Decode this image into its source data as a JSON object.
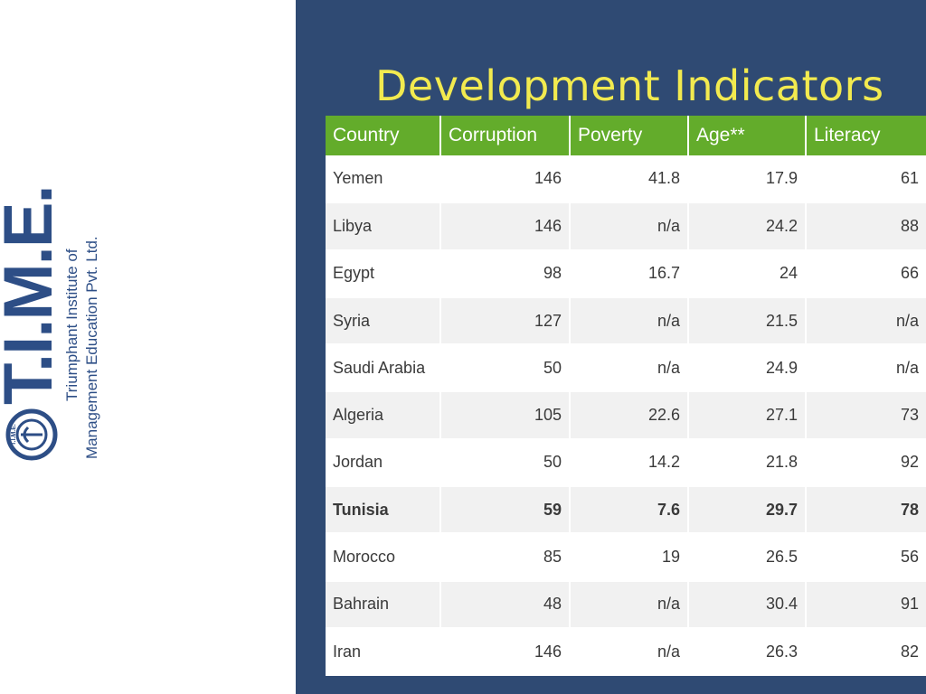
{
  "slide": {
    "title": "Development Indicators"
  },
  "logo": {
    "brand": "T.I.M.E.",
    "line1": "Triumphant Institute of",
    "line2": "Management Education Pvt. Ltd.",
    "emblem_text": "T.I.M.E.",
    "colors": {
      "brand": "#2d4e86"
    }
  },
  "colors": {
    "panel": "#2f4a73",
    "title": "#f2ea4f",
    "header": "#63ac2b"
  },
  "table": {
    "headers": [
      "Country",
      "Corruption",
      "Poverty",
      "Age**",
      "Literacy"
    ],
    "rows": [
      [
        "Yemen",
        "146",
        "41.8",
        "17.9",
        "61"
      ],
      [
        "Libya",
        "146",
        "n/a",
        "24.2",
        "88"
      ],
      [
        "Egypt",
        "98",
        "16.7",
        "24",
        "66"
      ],
      [
        "Syria",
        "127",
        "n/a",
        "21.5",
        "n/a"
      ],
      [
        "Saudi Arabia",
        "50",
        "n/a",
        "24.9",
        "n/a"
      ],
      [
        "Algeria",
        "105",
        "22.6",
        "27.1",
        "73"
      ],
      [
        "Jordan",
        "50",
        "14.2",
        "21.8",
        "92"
      ],
      [
        "Tunisia",
        "59",
        "7.6",
        "29.7",
        "78"
      ],
      [
        "Morocco",
        "85",
        "19",
        "26.5",
        "56"
      ],
      [
        "Bahrain",
        "48",
        "n/a",
        "30.4",
        "91"
      ],
      [
        "Iran",
        "146",
        "n/a",
        "26.3",
        "82"
      ]
    ],
    "bold_row": "Tunisia"
  }
}
